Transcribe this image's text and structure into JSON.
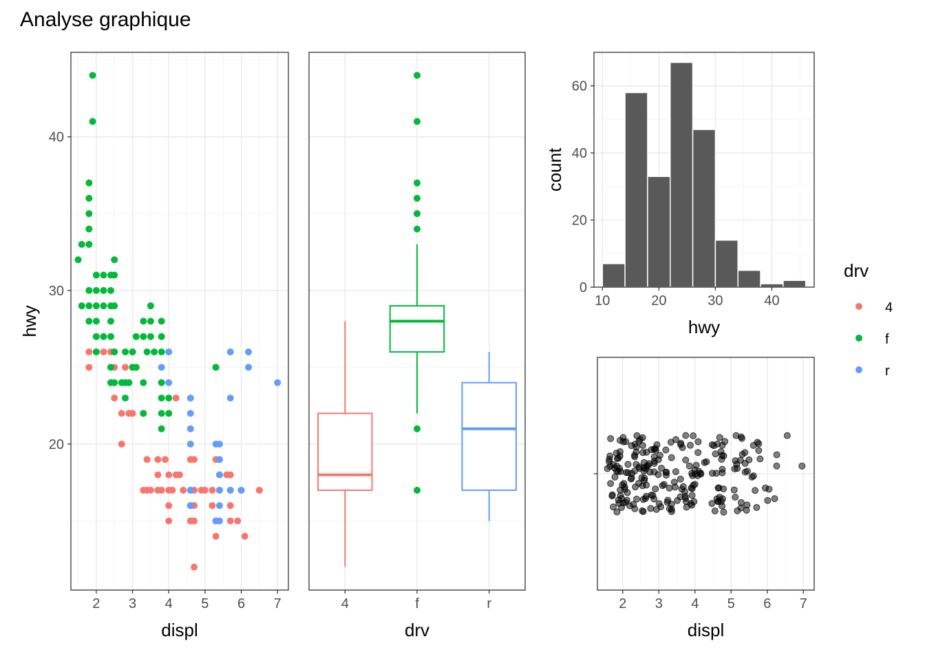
{
  "title": "Analyse graphique",
  "colors": {
    "4": "#F8766D",
    "f": "#00BA38",
    "r": "#619CFF",
    "bar": "#595959",
    "jitter": "#000000"
  },
  "legend": {
    "title": "drv",
    "keys": [
      "4",
      "f",
      "r"
    ]
  },
  "chart_data": [
    {
      "type": "scatter",
      "xlabel": "displ",
      "ylabel": "hwy",
      "xlim": [
        1.3,
        7.3
      ],
      "ylim": [
        10.5,
        45.5
      ],
      "xticks": [
        2,
        3,
        4,
        5,
        6,
        7
      ],
      "yticks": [
        20,
        30,
        40
      ],
      "grid": true,
      "color_by": "drv",
      "series": [
        {
          "name": "4",
          "points": [
            [
              1.8,
              26
            ],
            [
              1.8,
              25
            ],
            [
              2.0,
              26
            ],
            [
              2.2,
              26
            ],
            [
              2.4,
              26
            ],
            [
              2.5,
              25
            ],
            [
              2.5,
              23
            ],
            [
              2.5,
              26
            ],
            [
              2.7,
              22
            ],
            [
              2.7,
              20
            ],
            [
              2.9,
              22
            ],
            [
              3.0,
              22
            ],
            [
              3.1,
              25
            ],
            [
              3.3,
              22
            ],
            [
              3.4,
              19
            ],
            [
              3.3,
              17
            ],
            [
              3.4,
              17
            ],
            [
              3.5,
              17
            ],
            [
              3.7,
              19
            ],
            [
              3.7,
              18
            ],
            [
              3.8,
              17
            ],
            [
              3.9,
              19
            ],
            [
              4.0,
              18
            ],
            [
              4.0,
              17
            ],
            [
              4.0,
              15
            ],
            [
              4.1,
              17
            ],
            [
              4.2,
              18
            ],
            [
              4.3,
              18
            ],
            [
              4.2,
              23
            ],
            [
              4.4,
              17
            ],
            [
              4.6,
              19
            ],
            [
              4.6,
              17
            ],
            [
              4.6,
              16
            ],
            [
              4.6,
              15
            ],
            [
              4.7,
              19
            ],
            [
              4.7,
              17
            ],
            [
              4.7,
              16
            ],
            [
              4.7,
              15
            ],
            [
              4.7,
              12
            ],
            [
              4.9,
              17
            ],
            [
              5.0,
              17
            ],
            [
              5.2,
              17
            ],
            [
              5.2,
              16
            ],
            [
              5.3,
              15
            ],
            [
              5.3,
              14
            ],
            [
              5.3,
              19
            ],
            [
              5.4,
              17
            ],
            [
              5.4,
              18
            ],
            [
              5.6,
              18
            ],
            [
              5.7,
              18
            ],
            [
              5.7,
              17
            ],
            [
              5.7,
              15
            ],
            [
              5.9,
              15
            ],
            [
              6.0,
              17
            ],
            [
              6.1,
              14
            ],
            [
              6.5,
              17
            ],
            [
              5.3,
              25
            ],
            [
              5.7,
              16
            ],
            [
              3.0,
              26
            ],
            [
              2.8,
              25
            ],
            [
              4.0,
              16
            ],
            [
              3.7,
              17
            ]
          ]
        },
        {
          "name": "f",
          "points": [
            [
              1.9,
              44
            ],
            [
              1.9,
              41
            ],
            [
              1.8,
              37
            ],
            [
              1.8,
              36
            ],
            [
              1.8,
              35
            ],
            [
              1.8,
              34
            ],
            [
              1.6,
              33
            ],
            [
              1.8,
              33
            ],
            [
              1.5,
              32
            ],
            [
              2.5,
              32
            ],
            [
              2.4,
              31
            ],
            [
              2.0,
              31
            ],
            [
              2.2,
              31
            ],
            [
              2.5,
              31
            ],
            [
              1.8,
              30
            ],
            [
              2.0,
              30
            ],
            [
              2.2,
              30
            ],
            [
              2.4,
              30
            ],
            [
              1.6,
              29
            ],
            [
              1.8,
              29
            ],
            [
              2.0,
              29
            ],
            [
              2.2,
              29
            ],
            [
              2.4,
              29
            ],
            [
              2.5,
              29
            ],
            [
              3.5,
              29
            ],
            [
              1.8,
              28
            ],
            [
              2.0,
              28
            ],
            [
              2.4,
              28
            ],
            [
              3.3,
              28
            ],
            [
              3.5,
              28
            ],
            [
              3.8,
              28
            ],
            [
              2.0,
              27
            ],
            [
              2.2,
              27
            ],
            [
              2.4,
              27
            ],
            [
              3.1,
              27
            ],
            [
              3.3,
              27
            ],
            [
              3.5,
              27
            ],
            [
              3.8,
              27
            ],
            [
              2.0,
              26
            ],
            [
              2.5,
              26
            ],
            [
              2.8,
              26
            ],
            [
              3.0,
              26
            ],
            [
              3.4,
              26
            ],
            [
              3.6,
              26
            ],
            [
              3.8,
              26
            ],
            [
              2.4,
              25
            ],
            [
              3.0,
              25
            ],
            [
              3.1,
              25
            ],
            [
              5.3,
              25
            ],
            [
              2.4,
              24
            ],
            [
              2.7,
              24
            ],
            [
              2.8,
              24
            ],
            [
              2.9,
              24
            ],
            [
              3.3,
              24
            ],
            [
              3.8,
              24
            ],
            [
              2.5,
              24
            ],
            [
              3.8,
              23
            ],
            [
              4.0,
              23
            ],
            [
              2.8,
              23
            ],
            [
              3.8,
              22
            ],
            [
              3.3,
              22
            ],
            [
              3.8,
              21
            ],
            [
              4.0,
              22
            ]
          ]
        },
        {
          "name": "r",
          "points": [
            [
              7.0,
              24
            ],
            [
              6.2,
              26
            ],
            [
              6.2,
              25
            ],
            [
              5.7,
              26
            ],
            [
              5.7,
              23
            ],
            [
              4.0,
              26
            ],
            [
              3.8,
              25
            ],
            [
              4.0,
              24
            ],
            [
              4.6,
              23
            ],
            [
              4.6,
              22
            ],
            [
              4.6,
              21
            ],
            [
              5.4,
              20
            ],
            [
              5.4,
              18
            ],
            [
              5.4,
              17
            ],
            [
              5.4,
              15
            ],
            [
              5.4,
              16
            ],
            [
              6.0,
              17
            ],
            [
              4.6,
              20
            ],
            [
              5.3,
              20
            ],
            [
              5.3,
              15
            ],
            [
              4.6,
              17
            ],
            [
              5.4,
              19
            ],
            [
              4.6,
              16
            ],
            [
              5.7,
              17
            ]
          ]
        }
      ]
    },
    {
      "type": "box",
      "xlabel": "drv",
      "ylabel": "",
      "categories": [
        "4",
        "f",
        "r"
      ],
      "ylim": [
        10.5,
        45.5
      ],
      "grid": true,
      "boxes": [
        {
          "name": "4",
          "q1": 17,
          "median": 18,
          "q3": 22,
          "lower": 12,
          "upper": 28,
          "outliers": []
        },
        {
          "name": "f",
          "q1": 26,
          "median": 28,
          "q3": 29,
          "lower": 22,
          "upper": 33,
          "outliers": [
            44,
            41,
            37,
            36,
            35,
            34,
            21,
            17
          ]
        },
        {
          "name": "r",
          "q1": 17,
          "median": 21,
          "q3": 24,
          "lower": 15,
          "upper": 26,
          "outliers": []
        }
      ]
    },
    {
      "type": "bar",
      "subtype": "histogram",
      "xlabel": "hwy",
      "ylabel": "count",
      "xlim": [
        8.5,
        47.5
      ],
      "ylim": [
        0,
        70
      ],
      "xticks": [
        10,
        20,
        30,
        40
      ],
      "yticks": [
        0,
        20,
        40,
        60
      ],
      "grid": true,
      "bins": [
        {
          "x0": 10,
          "x1": 14,
          "count": 7
        },
        {
          "x0": 14,
          "x1": 18,
          "count": 58
        },
        {
          "x0": 18,
          "x1": 22,
          "count": 33
        },
        {
          "x0": 22,
          "x1": 26,
          "count": 67
        },
        {
          "x0": 26,
          "x1": 30,
          "count": 47
        },
        {
          "x0": 30,
          "x1": 34,
          "count": 14
        },
        {
          "x0": 34,
          "x1": 38,
          "count": 5
        },
        {
          "x0": 38,
          "x1": 42,
          "count": 1
        },
        {
          "x0": 42,
          "x1": 46,
          "count": 2
        }
      ]
    },
    {
      "type": "scatter",
      "subtype": "jitter",
      "xlabel": "displ",
      "ylabel": "",
      "xlim": [
        1.3,
        7.3
      ],
      "xticks": [
        2,
        3,
        4,
        5,
        6,
        7
      ],
      "grid": true,
      "x": [
        1.8,
        1.8,
        2.0,
        2.0,
        2.8,
        2.8,
        3.1,
        1.8,
        1.8,
        2.0,
        2.0,
        2.8,
        2.8,
        3.1,
        3.1,
        2.8,
        3.1,
        4.2,
        5.3,
        5.3,
        5.3,
        5.7,
        6.0,
        5.7,
        5.7,
        6.2,
        6.2,
        7.0,
        5.3,
        5.3,
        5.7,
        6.5,
        2.4,
        2.4,
        3.1,
        3.5,
        3.6,
        2.4,
        3.0,
        3.3,
        3.3,
        3.3,
        3.3,
        3.3,
        3.8,
        3.8,
        3.8,
        4.0,
        3.7,
        3.7,
        3.9,
        3.9,
        4.7,
        4.7,
        4.7,
        5.2,
        5.2,
        3.9,
        4.7,
        4.7,
        4.7,
        5.2,
        5.7,
        5.9,
        4.7,
        4.7,
        4.7,
        4.7,
        4.7,
        4.7,
        5.2,
        5.2,
        5.7,
        5.9,
        4.6,
        5.4,
        5.4,
        4.0,
        4.0,
        4.0,
        4.0,
        4.6,
        5.0,
        4.2,
        4.2,
        4.6,
        4.6,
        4.6,
        5.4,
        5.4,
        3.8,
        3.8,
        4.0,
        4.0,
        4.6,
        4.6,
        4.6,
        4.6,
        5.4,
        1.6,
        1.6,
        1.6,
        1.6,
        1.6,
        1.8,
        1.8,
        1.8,
        2.0,
        2.4,
        2.4,
        2.4,
        2.4,
        2.5,
        2.5,
        3.3,
        2.0,
        2.0,
        2.0,
        2.0,
        2.7,
        2.7,
        2.7,
        3.0,
        3.7,
        4.0,
        4.7,
        4.7,
        4.7,
        5.7,
        6.1,
        4.0,
        4.2,
        4.4,
        4.6,
        5.4,
        5.4,
        5.4,
        4.0,
        4.0,
        4.6,
        5.0,
        2.4,
        2.4,
        2.5,
        2.5,
        3.5,
        3.5,
        3.0,
        3.0,
        3.5,
        3.3,
        3.3,
        4.0,
        5.6,
        3.1,
        3.8,
        3.8,
        3.8,
        5.3,
        2.5,
        2.5,
        2.5,
        2.5,
        2.5,
        2.5,
        2.2,
        2.2,
        2.5,
        2.5,
        2.5,
        2.5,
        2.5,
        2.5,
        2.7,
        2.7,
        3.4,
        3.4,
        4.0,
        4.7,
        2.2,
        2.2,
        2.4,
        2.4,
        3.0,
        3.0,
        3.5,
        2.2,
        2.2,
        2.4,
        2.4,
        3.0,
        3.0,
        3.3,
        1.8,
        1.8,
        1.8,
        1.8,
        1.8,
        4.7,
        5.7,
        2.7,
        2.7,
        2.7,
        3.4,
        3.4,
        4.0,
        4.0,
        2.0,
        2.0,
        2.0,
        2.0,
        2.8,
        1.9,
        2.0,
        2.0,
        2.0,
        2.0,
        2.5,
        2.5,
        2.8,
        2.8,
        1.9,
        1.9,
        2.0,
        2.0,
        2.5,
        2.5,
        1.8,
        1.8,
        2.0,
        2.0,
        2.8,
        2.8,
        3.6
      ],
      "jitter_note": ""
    }
  ]
}
